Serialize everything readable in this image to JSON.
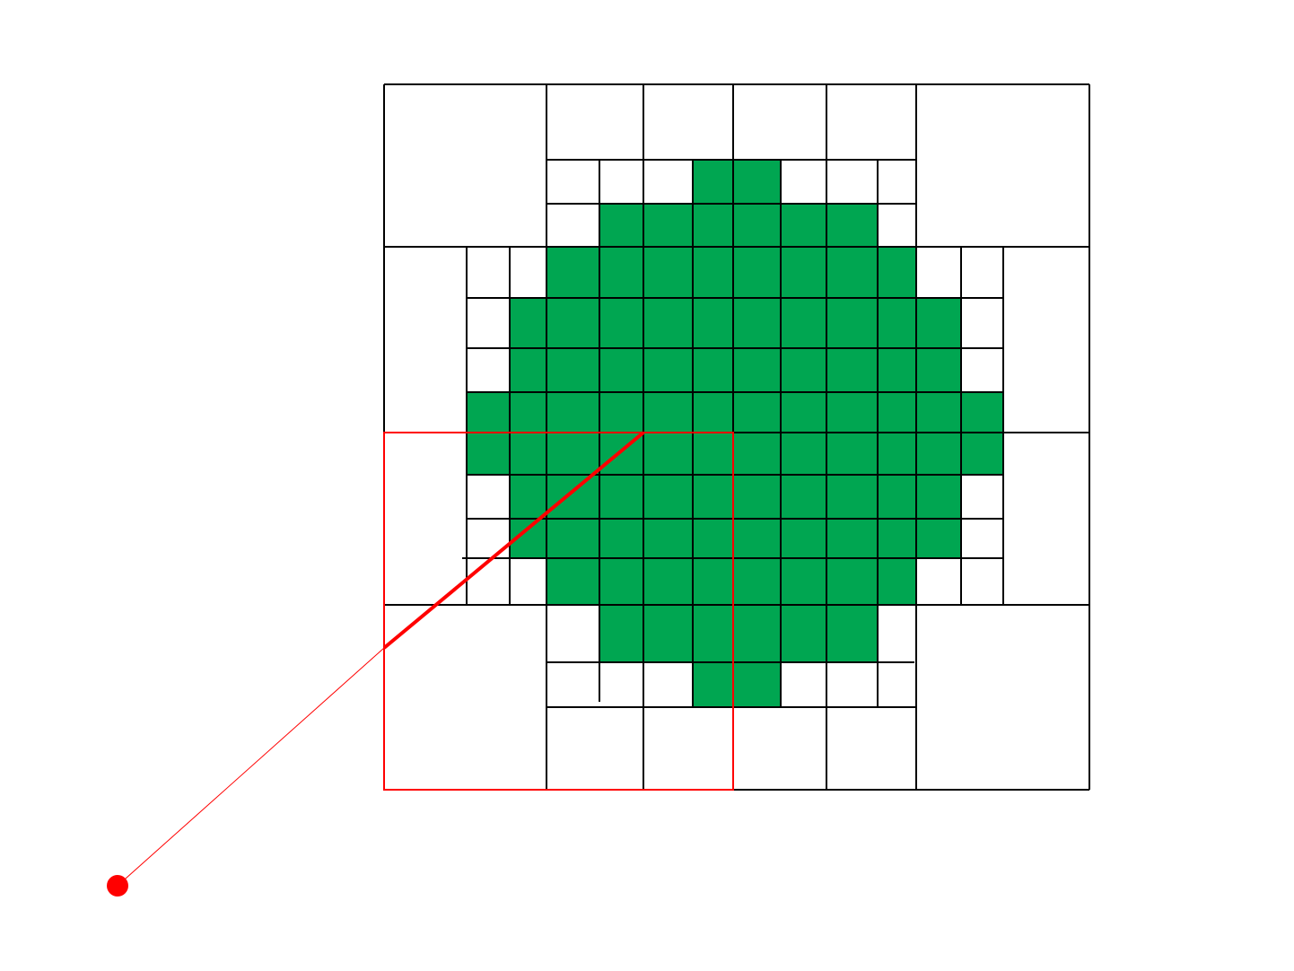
{
  "diagram": {
    "description_text": "",
    "colors": {
      "fill": "#00a651",
      "grid": "#000000",
      "highlight": "#ff0000",
      "background": "#ffffff"
    },
    "cell_grid": {
      "columns": 12,
      "rows": 14,
      "filled_cells_by_row": [
        [
          4,
          5
        ],
        [
          2,
          3,
          4,
          5,
          6,
          7
        ],
        [
          1,
          2,
          3,
          4,
          5,
          6,
          7,
          8
        ],
        [
          0,
          1,
          2,
          3,
          4,
          5,
          6,
          7,
          8,
          9
        ],
        [
          0,
          1,
          2,
          3,
          4,
          5,
          6,
          7,
          8,
          9
        ],
        [
          -1,
          0,
          1,
          2,
          3,
          4,
          5,
          6,
          7,
          8,
          9,
          10
        ],
        [
          -1,
          0,
          1,
          2,
          3,
          4,
          5,
          6,
          7,
          8,
          9,
          10
        ],
        [
          0,
          1,
          2,
          3,
          4,
          5,
          6,
          7,
          8,
          9
        ],
        [
          0,
          1,
          2,
          3,
          4,
          5,
          6,
          7,
          8,
          9
        ],
        [
          1,
          2,
          3,
          4,
          5,
          6,
          7,
          8
        ],
        [
          2,
          3,
          4,
          5,
          6,
          7
        ],
        [
          4,
          5
        ]
      ]
    }
  }
}
